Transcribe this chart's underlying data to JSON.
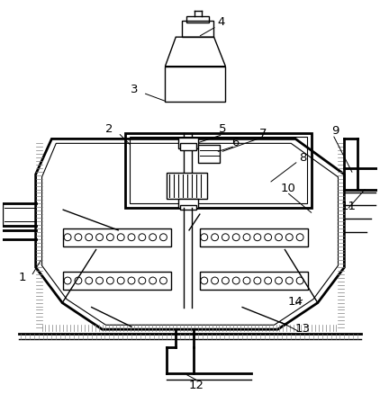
{
  "bg_color": "#ffffff",
  "line_color": "#000000",
  "label_color": "#000000",
  "figsize": [
    4.22,
    4.39
  ],
  "dpi": 100,
  "lw": 1.0,
  "lw_thick": 2.0
}
